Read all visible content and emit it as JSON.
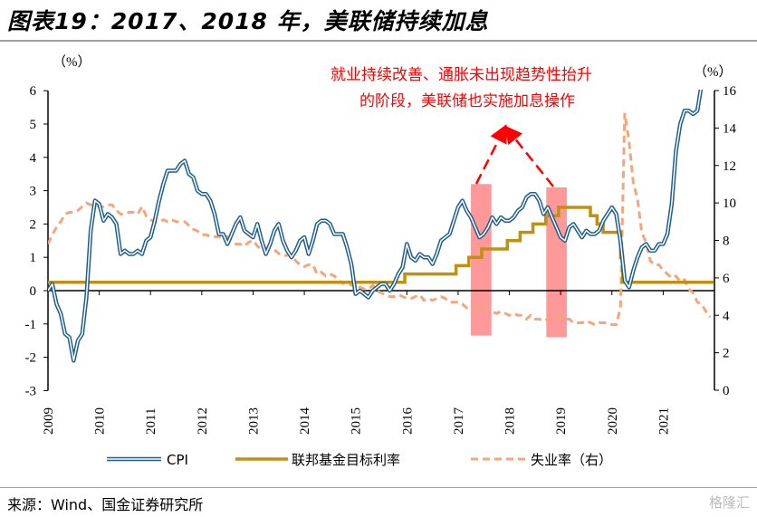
{
  "title": "图表19：2017、2018 年，美联储持续加息",
  "source": "来源：Wind、国金证券研究所",
  "watermark": "格隆汇",
  "chart_data": {
    "type": "line",
    "left_unit": "（%）",
    "right_unit": "（%）",
    "left_ylim": [
      -3,
      6
    ],
    "right_ylim": [
      0,
      16
    ],
    "left_ticks": [
      "-3",
      "-2",
      "-1",
      "0",
      "1",
      "2",
      "3",
      "4",
      "5",
      "6"
    ],
    "right_ticks": [
      "0",
      "2",
      "4",
      "6",
      "8",
      "10",
      "12",
      "14",
      "16"
    ],
    "x_ticks": [
      "2009",
      "2010",
      "2011",
      "2012",
      "2013",
      "2014",
      "2015",
      "2016",
      "2017",
      "2018",
      "2019",
      "2020",
      "2021"
    ],
    "x_start": 2009,
    "annotation": [
      "就业持续改善、通胀未出现趋势性抬升",
      "的阶段，美联储也实施加息操作"
    ],
    "highlights": [
      {
        "x": [
          2017.25,
          2017.65
        ],
        "y": [
          -1.35,
          3.2
        ]
      },
      {
        "x": [
          2018.72,
          2019.12
        ],
        "y": [
          -1.4,
          3.1
        ]
      }
    ],
    "series": [
      {
        "name": "CPI",
        "axis": "left",
        "color": "#1f5f8b",
        "values": [
          0.0,
          0.2,
          -0.4,
          -0.7,
          -1.3,
          -1.4,
          -2.1,
          -1.5,
          -1.3,
          -0.2,
          1.8,
          2.7,
          2.6,
          2.1,
          2.3,
          2.2,
          2.0,
          1.1,
          1.2,
          1.1,
          1.1,
          1.2,
          1.1,
          1.5,
          1.6,
          2.1,
          2.7,
          3.2,
          3.6,
          3.6,
          3.6,
          3.8,
          3.9,
          3.5,
          3.4,
          3.0,
          2.9,
          2.9,
          2.7,
          2.3,
          1.7,
          1.7,
          1.4,
          1.7,
          2.0,
          2.2,
          1.8,
          1.7,
          1.6,
          2.0,
          1.5,
          1.1,
          1.4,
          1.8,
          2.0,
          1.5,
          1.2,
          1.0,
          1.2,
          1.5,
          1.6,
          1.1,
          1.5,
          2.0,
          2.1,
          2.1,
          2.0,
          1.7,
          1.7,
          1.7,
          1.3,
          0.8,
          -0.1,
          0.0,
          -0.1,
          -0.2,
          0.0,
          0.1,
          0.2,
          0.2,
          0.0,
          0.2,
          0.5,
          0.7,
          1.4,
          1.0,
          0.9,
          1.1,
          1.0,
          1.0,
          0.8,
          1.1,
          1.5,
          1.6,
          1.7,
          2.1,
          2.5,
          2.7,
          2.4,
          2.2,
          1.9,
          1.6,
          1.7,
          1.9,
          2.2,
          2.0,
          2.2,
          2.1,
          2.1,
          2.2,
          2.4,
          2.5,
          2.8,
          2.9,
          2.9,
          2.7,
          2.3,
          2.5,
          2.2,
          1.9,
          1.6,
          1.5,
          1.9,
          2.0,
          1.8,
          1.6,
          1.8,
          1.7,
          1.7,
          1.8,
          2.1,
          2.3,
          2.5,
          2.3,
          1.5,
          0.3,
          0.1,
          0.6,
          1.0,
          1.3,
          1.4,
          1.2,
          1.2,
          1.4,
          1.4,
          1.7,
          2.6,
          4.2,
          5.0,
          5.4,
          5.4,
          5.3,
          5.4,
          6.2,
          6.8,
          7.0
        ]
      },
      {
        "name": "联邦基金目标利率",
        "axis": "left",
        "color": "#c09010",
        "steps": [
          [
            2009,
            0.25
          ],
          [
            2015.96,
            0.5
          ],
          [
            2016.96,
            0.75
          ],
          [
            2017.21,
            1.0
          ],
          [
            2017.46,
            1.25
          ],
          [
            2017.96,
            1.5
          ],
          [
            2018.21,
            1.75
          ],
          [
            2018.46,
            2.0
          ],
          [
            2018.71,
            2.25
          ],
          [
            2018.96,
            2.5
          ],
          [
            2019.58,
            2.25
          ],
          [
            2019.71,
            2.0
          ],
          [
            2019.83,
            1.75
          ],
          [
            2020.17,
            1.0
          ],
          [
            2020.21,
            0.25
          ],
          [
            2021.99,
            0.25
          ]
        ]
      },
      {
        "name": "失业率（右）",
        "axis": "right",
        "color": "#f4a67a",
        "values": [
          7.8,
          8.3,
          8.7,
          9.0,
          9.4,
          9.5,
          9.5,
          9.6,
          9.8,
          10.0,
          9.9,
          9.9,
          9.8,
          9.8,
          9.9,
          9.9,
          9.6,
          9.4,
          9.4,
          9.5,
          9.5,
          9.4,
          9.8,
          9.3,
          9.1,
          9.0,
          9.0,
          9.1,
          9.0,
          9.1,
          9.0,
          9.0,
          9.0,
          8.8,
          8.6,
          8.5,
          8.3,
          8.3,
          8.2,
          8.2,
          8.2,
          8.2,
          8.2,
          8.0,
          7.8,
          7.8,
          7.7,
          7.9,
          8.0,
          7.7,
          7.5,
          7.6,
          7.5,
          7.5,
          7.3,
          7.2,
          7.2,
          7.2,
          6.9,
          6.7,
          6.6,
          6.7,
          6.7,
          6.2,
          6.3,
          6.1,
          6.2,
          6.1,
          5.9,
          5.7,
          5.8,
          5.6,
          5.7,
          5.5,
          5.4,
          5.4,
          5.6,
          5.3,
          5.2,
          5.1,
          5.0,
          5.0,
          5.1,
          5.0,
          4.9,
          4.9,
          5.0,
          5.1,
          4.8,
          4.9,
          4.8,
          4.9,
          5.0,
          4.9,
          4.7,
          4.7,
          4.7,
          4.6,
          4.4,
          4.4,
          4.4,
          4.3,
          4.3,
          4.4,
          4.2,
          4.1,
          4.2,
          4.1,
          4.0,
          4.1,
          4.0,
          4.0,
          3.8,
          4.0,
          3.8,
          3.8,
          3.7,
          3.8,
          3.8,
          3.9,
          4.0,
          3.8,
          3.8,
          3.6,
          3.6,
          3.6,
          3.7,
          3.6,
          3.5,
          3.6,
          3.6,
          3.6,
          3.5,
          3.5,
          4.4,
          14.8,
          13.3,
          11.1,
          10.2,
          8.4,
          7.9,
          6.9,
          6.7,
          6.7,
          6.4,
          6.2,
          6.0,
          6.1,
          5.8,
          5.9,
          5.4,
          5.2,
          4.7,
          4.6,
          4.2,
          3.9
        ]
      }
    ]
  }
}
